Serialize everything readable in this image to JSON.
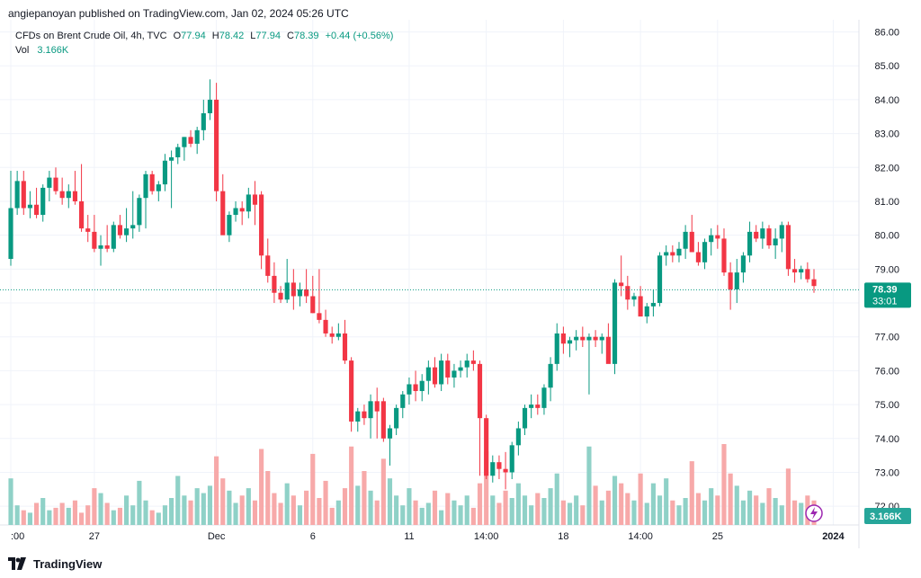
{
  "publisher_line": "angiepanoyan published on TradingView.com, Jan 02, 2024 05:26 UTC",
  "legend": {
    "symbol": "CFDs on Brent Crude Oil, 4h, TVC",
    "open_label": "O",
    "open": "77.94",
    "high_label": "H",
    "high": "78.42",
    "low_label": "L",
    "low": "77.94",
    "close_label": "C",
    "close": "78.39",
    "change": "+0.44 (+0.56%)",
    "vol_label": "Vol",
    "vol_value": "3.166K"
  },
  "footer": {
    "brand": "TradingView"
  },
  "price_badge": {
    "price": "78.39",
    "countdown": "33:01"
  },
  "volume_badge": "3.166K",
  "colors": {
    "up": "#089981",
    "down": "#f23645",
    "up_vol": "#8fd1c7",
    "down_vol": "#f7a9a9",
    "accent": "#9c27b0"
  },
  "chart_data": {
    "type": "candlestick",
    "title": "CFDs on Brent Crude Oil, 4h, TVC",
    "ylim": [
      71.5,
      86.2
    ],
    "y_ticks": [
      "86.00",
      "85.00",
      "84.00",
      "83.00",
      "82.00",
      "81.00",
      "80.00",
      "79.00",
      "78.00",
      "77.00",
      "76.00",
      "75.00",
      "74.00",
      "73.00",
      "72.00"
    ],
    "x_ticks": [
      {
        "label": ":00",
        "index": 0
      },
      {
        "label": "27",
        "index": 13
      },
      {
        "label": "Dec",
        "index": 32
      },
      {
        "label": "6",
        "index": 47
      },
      {
        "label": "11",
        "index": 62
      },
      {
        "label": "14:00",
        "index": 74
      },
      {
        "label": "18",
        "index": 86
      },
      {
        "label": "14:00",
        "index": 98
      },
      {
        "label": "25",
        "index": 110
      },
      {
        "label": "2024",
        "index": 128
      }
    ],
    "last_price": 78.39,
    "candles": [
      {
        "o": 79.3,
        "h": 81.9,
        "l": 79.1,
        "c": 80.8,
        "v": 1900
      },
      {
        "o": 80.8,
        "h": 81.9,
        "l": 80.6,
        "c": 81.6,
        "v": 800
      },
      {
        "o": 81.6,
        "h": 81.9,
        "l": 80.6,
        "c": 80.8,
        "v": 600
      },
      {
        "o": 80.8,
        "h": 81.3,
        "l": 80.5,
        "c": 80.9,
        "v": 500
      },
      {
        "o": 80.9,
        "h": 81.4,
        "l": 80.5,
        "c": 80.6,
        "v": 900
      },
      {
        "o": 80.6,
        "h": 81.5,
        "l": 80.4,
        "c": 81.4,
        "v": 1100
      },
      {
        "o": 81.4,
        "h": 81.9,
        "l": 81.0,
        "c": 81.7,
        "v": 600
      },
      {
        "o": 81.7,
        "h": 82.0,
        "l": 81.2,
        "c": 81.3,
        "v": 700
      },
      {
        "o": 81.3,
        "h": 81.7,
        "l": 80.9,
        "c": 81.1,
        "v": 900
      },
      {
        "o": 81.1,
        "h": 81.5,
        "l": 80.8,
        "c": 81.3,
        "v": 700
      },
      {
        "o": 81.3,
        "h": 81.9,
        "l": 80.9,
        "c": 81.0,
        "v": 1000
      },
      {
        "o": 81.0,
        "h": 82.1,
        "l": 80.1,
        "c": 80.2,
        "v": 500
      },
      {
        "o": 80.2,
        "h": 80.6,
        "l": 79.8,
        "c": 80.1,
        "v": 800
      },
      {
        "o": 80.1,
        "h": 80.6,
        "l": 79.5,
        "c": 79.6,
        "v": 1500
      },
      {
        "o": 79.6,
        "h": 80.0,
        "l": 79.1,
        "c": 79.7,
        "v": 1300
      },
      {
        "o": 79.7,
        "h": 80.3,
        "l": 79.5,
        "c": 79.6,
        "v": 900
      },
      {
        "o": 79.6,
        "h": 80.4,
        "l": 79.5,
        "c": 80.3,
        "v": 600
      },
      {
        "o": 80.3,
        "h": 80.6,
        "l": 79.9,
        "c": 80.0,
        "v": 700
      },
      {
        "o": 80.0,
        "h": 80.8,
        "l": 79.8,
        "c": 80.2,
        "v": 1200
      },
      {
        "o": 80.2,
        "h": 81.3,
        "l": 79.9,
        "c": 80.3,
        "v": 800
      },
      {
        "o": 80.3,
        "h": 81.2,
        "l": 80.1,
        "c": 81.1,
        "v": 1800
      },
      {
        "o": 81.1,
        "h": 81.9,
        "l": 80.2,
        "c": 81.8,
        "v": 1000
      },
      {
        "o": 81.8,
        "h": 81.9,
        "l": 81.2,
        "c": 81.3,
        "v": 600
      },
      {
        "o": 81.3,
        "h": 81.6,
        "l": 81.0,
        "c": 81.5,
        "v": 500
      },
      {
        "o": 81.5,
        "h": 82.4,
        "l": 81.3,
        "c": 82.2,
        "v": 800
      },
      {
        "o": 82.2,
        "h": 82.5,
        "l": 80.8,
        "c": 82.3,
        "v": 1100
      },
      {
        "o": 82.3,
        "h": 82.7,
        "l": 82.1,
        "c": 82.6,
        "v": 2000
      },
      {
        "o": 82.6,
        "h": 82.9,
        "l": 82.2,
        "c": 82.9,
        "v": 1200
      },
      {
        "o": 82.9,
        "h": 83.1,
        "l": 82.6,
        "c": 82.7,
        "v": 1000
      },
      {
        "o": 82.7,
        "h": 83.2,
        "l": 82.4,
        "c": 83.1,
        "v": 1500
      },
      {
        "o": 83.1,
        "h": 84.0,
        "l": 82.8,
        "c": 83.6,
        "v": 1300
      },
      {
        "o": 83.6,
        "h": 84.6,
        "l": 83.4,
        "c": 84.0,
        "v": 1600
      },
      {
        "o": 84.0,
        "h": 84.5,
        "l": 81.0,
        "c": 81.3,
        "v": 2800
      },
      {
        "o": 81.3,
        "h": 81.8,
        "l": 80.1,
        "c": 80.0,
        "v": 1900
      },
      {
        "o": 80.0,
        "h": 80.7,
        "l": 79.8,
        "c": 80.6,
        "v": 1400
      },
      {
        "o": 80.6,
        "h": 81.0,
        "l": 80.4,
        "c": 80.8,
        "v": 900
      },
      {
        "o": 80.8,
        "h": 81.0,
        "l": 80.3,
        "c": 80.7,
        "v": 1200
      },
      {
        "o": 80.7,
        "h": 81.4,
        "l": 80.5,
        "c": 81.2,
        "v": 1500
      },
      {
        "o": 81.2,
        "h": 81.6,
        "l": 80.3,
        "c": 80.9,
        "v": 1000
      },
      {
        "o": 81.2,
        "h": 81.3,
        "l": 79.0,
        "c": 79.4,
        "v": 3100
      },
      {
        "o": 79.4,
        "h": 79.9,
        "l": 78.6,
        "c": 78.8,
        "v": 2200
      },
      {
        "o": 78.8,
        "h": 79.2,
        "l": 78.0,
        "c": 78.3,
        "v": 1300
      },
      {
        "o": 78.3,
        "h": 78.5,
        "l": 78.0,
        "c": 78.1,
        "v": 900
      },
      {
        "o": 78.1,
        "h": 79.3,
        "l": 78.0,
        "c": 78.6,
        "v": 1700
      },
      {
        "o": 78.6,
        "h": 79.0,
        "l": 77.8,
        "c": 78.2,
        "v": 1200
      },
      {
        "o": 78.2,
        "h": 78.6,
        "l": 77.9,
        "c": 78.4,
        "v": 800
      },
      {
        "o": 78.4,
        "h": 79.0,
        "l": 78.0,
        "c": 78.2,
        "v": 1400
      },
      {
        "o": 78.2,
        "h": 78.8,
        "l": 77.7,
        "c": 77.7,
        "v": 2900
      },
      {
        "o": 77.7,
        "h": 79.0,
        "l": 77.4,
        "c": 77.5,
        "v": 1100
      },
      {
        "o": 77.5,
        "h": 77.8,
        "l": 77.0,
        "c": 77.1,
        "v": 1800
      },
      {
        "o": 77.1,
        "h": 77.3,
        "l": 76.8,
        "c": 77.0,
        "v": 700
      },
      {
        "o": 77.0,
        "h": 77.4,
        "l": 76.9,
        "c": 77.1,
        "v": 1000
      },
      {
        "o": 77.1,
        "h": 77.5,
        "l": 76.2,
        "c": 76.3,
        "v": 1500
      },
      {
        "o": 76.3,
        "h": 76.4,
        "l": 74.2,
        "c": 74.5,
        "v": 3200
      },
      {
        "o": 74.5,
        "h": 74.9,
        "l": 74.2,
        "c": 74.8,
        "v": 1600
      },
      {
        "o": 74.8,
        "h": 75.0,
        "l": 74.4,
        "c": 74.6,
        "v": 2200
      },
      {
        "o": 74.6,
        "h": 75.3,
        "l": 74.0,
        "c": 75.1,
        "v": 1400
      },
      {
        "o": 75.1,
        "h": 75.5,
        "l": 74.0,
        "c": 74.8,
        "v": 1000
      },
      {
        "o": 75.1,
        "h": 75.2,
        "l": 73.9,
        "c": 74.0,
        "v": 2700
      },
      {
        "o": 74.0,
        "h": 74.4,
        "l": 73.2,
        "c": 74.3,
        "v": 1900
      },
      {
        "o": 74.3,
        "h": 75.0,
        "l": 74.1,
        "c": 74.9,
        "v": 1200
      },
      {
        "o": 74.9,
        "h": 75.4,
        "l": 74.6,
        "c": 75.3,
        "v": 800
      },
      {
        "o": 75.3,
        "h": 75.8,
        "l": 75.0,
        "c": 75.6,
        "v": 1500
      },
      {
        "o": 75.6,
        "h": 76.0,
        "l": 75.1,
        "c": 75.4,
        "v": 1000
      },
      {
        "o": 75.4,
        "h": 75.9,
        "l": 75.1,
        "c": 75.7,
        "v": 700
      },
      {
        "o": 75.7,
        "h": 76.3,
        "l": 75.3,
        "c": 76.1,
        "v": 900
      },
      {
        "o": 76.1,
        "h": 76.4,
        "l": 75.5,
        "c": 75.6,
        "v": 1400
      },
      {
        "o": 75.6,
        "h": 76.5,
        "l": 75.4,
        "c": 76.3,
        "v": 600
      },
      {
        "o": 76.3,
        "h": 76.5,
        "l": 75.6,
        "c": 75.8,
        "v": 1300
      },
      {
        "o": 75.8,
        "h": 76.2,
        "l": 75.5,
        "c": 76.0,
        "v": 1000
      },
      {
        "o": 76.0,
        "h": 76.3,
        "l": 75.8,
        "c": 76.1,
        "v": 800
      },
      {
        "o": 76.1,
        "h": 76.5,
        "l": 75.8,
        "c": 76.3,
        "v": 1200
      },
      {
        "o": 76.3,
        "h": 76.6,
        "l": 76.0,
        "c": 76.2,
        "v": 700
      },
      {
        "o": 76.2,
        "h": 76.3,
        "l": 72.9,
        "c": 74.6,
        "v": 1700
      },
      {
        "o": 74.6,
        "h": 74.7,
        "l": 72.8,
        "c": 72.9,
        "v": 3000
      },
      {
        "o": 72.9,
        "h": 73.5,
        "l": 72.7,
        "c": 73.3,
        "v": 1200
      },
      {
        "o": 73.3,
        "h": 73.5,
        "l": 72.8,
        "c": 73.1,
        "v": 900
      },
      {
        "o": 73.1,
        "h": 73.6,
        "l": 72.5,
        "c": 73.0,
        "v": 1400
      },
      {
        "o": 73.0,
        "h": 73.9,
        "l": 72.8,
        "c": 73.8,
        "v": 1100
      },
      {
        "o": 73.8,
        "h": 74.5,
        "l": 73.5,
        "c": 74.3,
        "v": 1700
      },
      {
        "o": 74.3,
        "h": 75.0,
        "l": 74.1,
        "c": 74.9,
        "v": 1200
      },
      {
        "o": 74.9,
        "h": 75.3,
        "l": 74.6,
        "c": 75.0,
        "v": 800
      },
      {
        "o": 75.0,
        "h": 75.3,
        "l": 74.7,
        "c": 74.9,
        "v": 1300
      },
      {
        "o": 74.9,
        "h": 75.6,
        "l": 74.7,
        "c": 75.5,
        "v": 1100
      },
      {
        "o": 75.5,
        "h": 76.4,
        "l": 75.1,
        "c": 76.2,
        "v": 1500
      },
      {
        "o": 76.2,
        "h": 77.4,
        "l": 76.0,
        "c": 77.1,
        "v": 2100
      },
      {
        "o": 77.1,
        "h": 77.3,
        "l": 76.5,
        "c": 76.8,
        "v": 1000
      },
      {
        "o": 76.8,
        "h": 77.0,
        "l": 76.4,
        "c": 76.9,
        "v": 900
      },
      {
        "o": 76.9,
        "h": 77.2,
        "l": 76.6,
        "c": 77.0,
        "v": 1200
      },
      {
        "o": 77.0,
        "h": 77.3,
        "l": 76.7,
        "c": 76.9,
        "v": 800
      },
      {
        "o": 76.9,
        "h": 77.1,
        "l": 75.3,
        "c": 77.0,
        "v": 3200
      },
      {
        "o": 77.0,
        "h": 77.2,
        "l": 76.7,
        "c": 76.9,
        "v": 1600
      },
      {
        "o": 76.9,
        "h": 77.1,
        "l": 76.5,
        "c": 77.0,
        "v": 1000
      },
      {
        "o": 77.0,
        "h": 77.4,
        "l": 76.3,
        "c": 76.2,
        "v": 1400
      },
      {
        "o": 76.2,
        "h": 78.7,
        "l": 75.9,
        "c": 78.6,
        "v": 2000
      },
      {
        "o": 78.6,
        "h": 79.4,
        "l": 78.2,
        "c": 78.5,
        "v": 1700
      },
      {
        "o": 78.5,
        "h": 78.8,
        "l": 77.8,
        "c": 78.1,
        "v": 1300
      },
      {
        "o": 78.1,
        "h": 78.3,
        "l": 77.9,
        "c": 78.2,
        "v": 1000
      },
      {
        "o": 78.2,
        "h": 78.5,
        "l": 77.7,
        "c": 77.6,
        "v": 2100
      },
      {
        "o": 77.6,
        "h": 78.0,
        "l": 77.4,
        "c": 77.9,
        "v": 900
      },
      {
        "o": 77.9,
        "h": 78.4,
        "l": 77.6,
        "c": 78.0,
        "v": 1700
      },
      {
        "o": 78.0,
        "h": 79.5,
        "l": 77.9,
        "c": 79.4,
        "v": 1200
      },
      {
        "o": 79.4,
        "h": 79.7,
        "l": 79.1,
        "c": 79.5,
        "v": 1900
      },
      {
        "o": 79.5,
        "h": 79.7,
        "l": 79.2,
        "c": 79.4,
        "v": 1000
      },
      {
        "o": 79.4,
        "h": 79.8,
        "l": 79.2,
        "c": 79.6,
        "v": 800
      },
      {
        "o": 79.6,
        "h": 80.3,
        "l": 79.3,
        "c": 80.1,
        "v": 1100
      },
      {
        "o": 80.1,
        "h": 80.6,
        "l": 79.6,
        "c": 79.5,
        "v": 2600
      },
      {
        "o": 79.5,
        "h": 79.8,
        "l": 79.1,
        "c": 79.2,
        "v": 1300
      },
      {
        "o": 79.2,
        "h": 79.9,
        "l": 79.0,
        "c": 79.8,
        "v": 1000
      },
      {
        "o": 79.8,
        "h": 80.2,
        "l": 79.4,
        "c": 80.0,
        "v": 1500
      },
      {
        "o": 80.0,
        "h": 80.3,
        "l": 79.6,
        "c": 79.9,
        "v": 1200
      },
      {
        "o": 79.9,
        "h": 80.2,
        "l": 78.8,
        "c": 78.9,
        "v": 3300
      },
      {
        "o": 78.9,
        "h": 79.2,
        "l": 77.8,
        "c": 78.4,
        "v": 2100
      },
      {
        "o": 78.4,
        "h": 79.3,
        "l": 78.0,
        "c": 78.9,
        "v": 1600
      },
      {
        "o": 78.9,
        "h": 79.5,
        "l": 78.6,
        "c": 79.4,
        "v": 1000
      },
      {
        "o": 79.4,
        "h": 80.4,
        "l": 79.2,
        "c": 80.1,
        "v": 1400
      },
      {
        "o": 80.1,
        "h": 80.3,
        "l": 79.8,
        "c": 79.9,
        "v": 1200
      },
      {
        "o": 79.9,
        "h": 80.4,
        "l": 79.6,
        "c": 80.2,
        "v": 900
      },
      {
        "o": 80.2,
        "h": 80.3,
        "l": 79.6,
        "c": 79.7,
        "v": 1500
      },
      {
        "o": 79.7,
        "h": 80.2,
        "l": 79.3,
        "c": 79.9,
        "v": 1100
      },
      {
        "o": 79.9,
        "h": 80.4,
        "l": 79.5,
        "c": 80.3,
        "v": 800
      },
      {
        "o": 80.3,
        "h": 80.4,
        "l": 78.8,
        "c": 79.0,
        "v": 2300
      },
      {
        "o": 79.0,
        "h": 79.3,
        "l": 78.6,
        "c": 78.9,
        "v": 1000
      },
      {
        "o": 78.9,
        "h": 79.1,
        "l": 78.7,
        "c": 79.0,
        "v": 900
      },
      {
        "o": 79.0,
        "h": 79.2,
        "l": 78.6,
        "c": 78.7,
        "v": 1200
      },
      {
        "o": 78.7,
        "h": 79.0,
        "l": 78.3,
        "c": 78.5,
        "v": 1000
      }
    ]
  }
}
